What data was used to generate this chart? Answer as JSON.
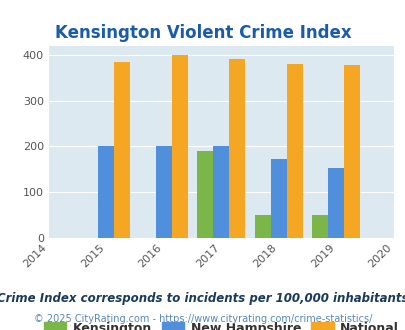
{
  "title": "Kensington Violent Crime Index",
  "years": [
    2014,
    2015,
    2016,
    2017,
    2018,
    2019,
    2020
  ],
  "bar_years": [
    2015,
    2016,
    2017,
    2018,
    2019
  ],
  "kensington": [
    0,
    0,
    190,
    50,
    50
  ],
  "new_hampshire": [
    200,
    200,
    200,
    173,
    153
  ],
  "national": [
    385,
    400,
    393,
    382,
    379
  ],
  "color_kensington": "#7ab648",
  "color_nh": "#4f8fdc",
  "color_national": "#f5a623",
  "bg_color": "#dce9f0",
  "ylim": [
    0,
    420
  ],
  "yticks": [
    0,
    100,
    200,
    300,
    400
  ],
  "title_color": "#1a5ca8",
  "footer1": "Crime Index corresponds to incidents per 100,000 inhabitants",
  "footer2": "© 2025 CityRating.com - https://www.cityrating.com/crime-statistics/",
  "bar_width": 0.28,
  "title_fontsize": 12,
  "legend_fontsize": 9,
  "tick_fontsize": 8,
  "footer1_fontsize": 8.5,
  "footer2_fontsize": 7
}
